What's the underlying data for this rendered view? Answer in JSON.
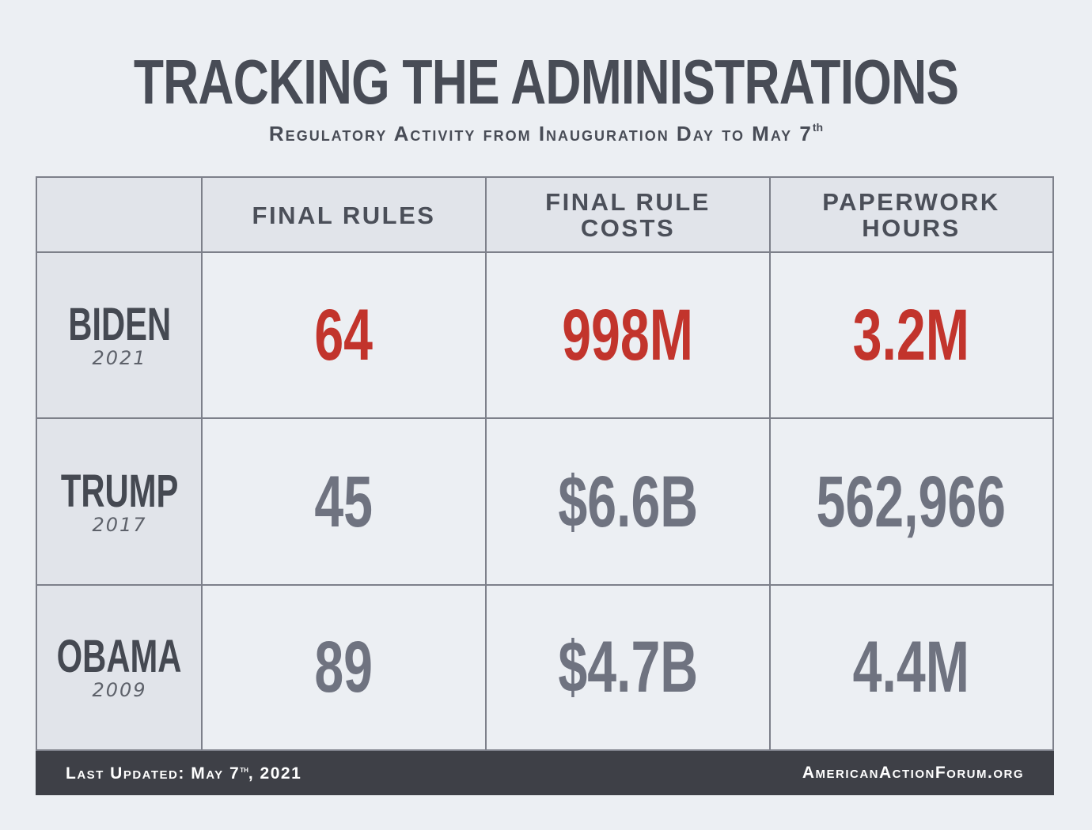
{
  "title": "TRACKING THE ADMINISTRATIONS",
  "subtitle": {
    "text": "Regulatory Activity from Inauguration Day to May 7",
    "suffix": "th"
  },
  "chart_data": {
    "type": "table",
    "columns": [
      {
        "line1": "FINAL RULES",
        "line2": ""
      },
      {
        "line1": "FINAL RULE",
        "line2": "COSTS"
      },
      {
        "line1": "PAPERWORK",
        "line2": "HOURS"
      }
    ],
    "rows": [
      {
        "name": "BIDEN",
        "year": "2021",
        "values": [
          "64",
          "998M",
          "3.2M"
        ],
        "highlight": true
      },
      {
        "name": "TRUMP",
        "year": "2017",
        "values": [
          "45",
          "$6.6B",
          "562,966"
        ],
        "highlight": false
      },
      {
        "name": "OBAMA",
        "year": "2009",
        "values": [
          "89",
          "$4.7B",
          "4.4M"
        ],
        "highlight": false
      }
    ],
    "colors": {
      "highlight": "#c2342c",
      "normal": "#6f7380"
    }
  },
  "footer": {
    "updated_prefix": "Last Updated: May 7",
    "updated_sup": "th",
    "updated_suffix": ", 2021",
    "site": "AmericanActionForum.org"
  }
}
